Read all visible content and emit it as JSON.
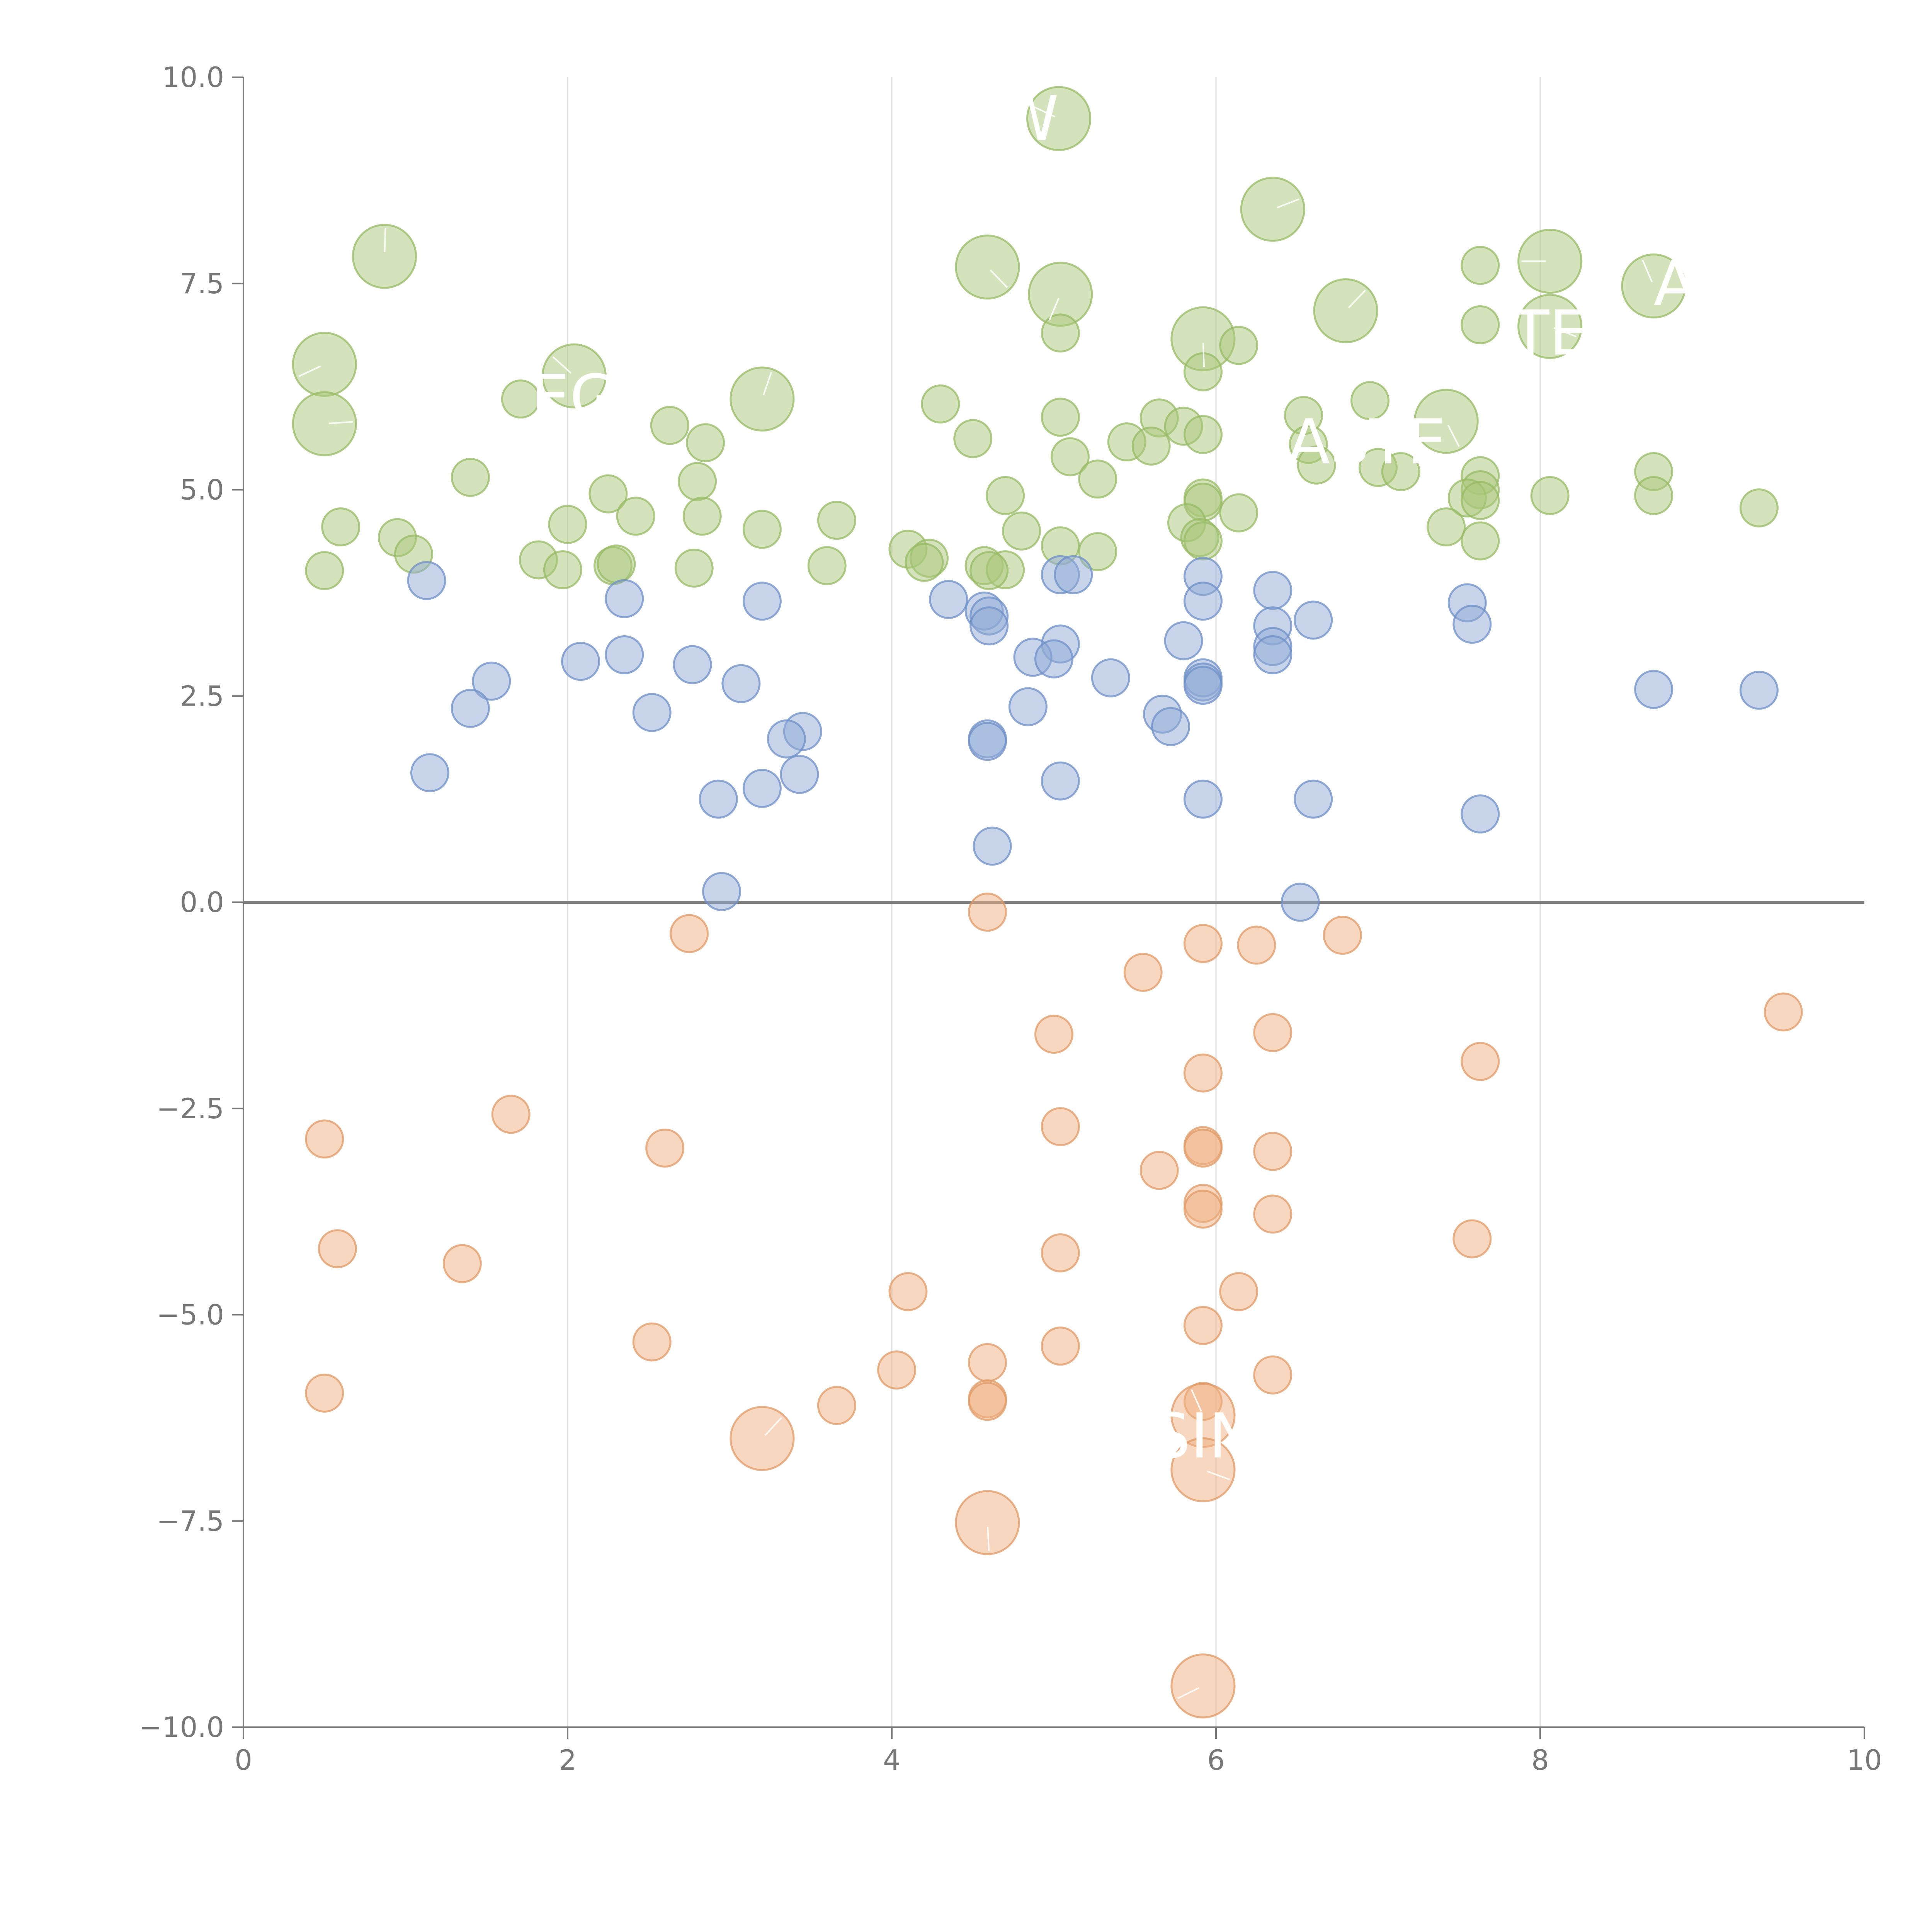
{
  "chart_data": {
    "type": "scatter",
    "title": "",
    "xlabel": "",
    "ylabel": "",
    "xlim": [
      0,
      10
    ],
    "ylim": [
      -10,
      10
    ],
    "x_ticks": [
      0,
      2,
      4,
      6,
      8,
      10
    ],
    "x_tick_labels": [
      "0",
      "2",
      "4",
      "6",
      "8",
      "10"
    ],
    "y_ticks": [
      10,
      7.5,
      5,
      2.5,
      0,
      -2.5,
      -5,
      -7.5,
      -10
    ],
    "y_tick_labels": [
      "10.0",
      "7.5",
      "5.0",
      "2.5",
      "0.0",
      "−2.5",
      "−5.0",
      "−7.5",
      "−10.0"
    ],
    "vertical_grid_at": [
      2,
      4,
      6,
      8
    ],
    "zero_line": true,
    "size_unit": "relative",
    "series": [
      {
        "name": "green",
        "color": "#a9c77a",
        "stroke": "#97b964",
        "points": [
          [
            5.03,
            9.5,
            1.7
          ],
          [
            0.87,
            7.83,
            1.7
          ],
          [
            6.35,
            8.4,
            1.7
          ],
          [
            4.59,
            7.7,
            1.7
          ],
          [
            5.04,
            7.37,
            1.7
          ],
          [
            8.06,
            7.77,
            1.7
          ],
          [
            8.7,
            7.47,
            1.7
          ],
          [
            6.8,
            7.17,
            1.7
          ],
          [
            8.06,
            6.98,
            1.7
          ],
          [
            5.92,
            6.83,
            1.7
          ],
          [
            0.5,
            6.52,
            1.7
          ],
          [
            2.04,
            6.38,
            1.7
          ],
          [
            3.2,
            6.1,
            1.7
          ],
          [
            0.5,
            5.8,
            1.7
          ],
          [
            7.42,
            5.83,
            1.7
          ],
          [
            7.63,
            7.72,
            1
          ],
          [
            7.63,
            7.0,
            1
          ],
          [
            6.14,
            6.75,
            1
          ],
          [
            5.04,
            6.9,
            1
          ],
          [
            5.92,
            6.43,
            1
          ],
          [
            1.71,
            6.1,
            1
          ],
          [
            4.3,
            6.04,
            1
          ],
          [
            6.95,
            6.08,
            1
          ],
          [
            6.54,
            5.9,
            1
          ],
          [
            5.04,
            5.88,
            1
          ],
          [
            5.65,
            5.87,
            1
          ],
          [
            5.8,
            5.77,
            1
          ],
          [
            5.92,
            5.67,
            1
          ],
          [
            2.63,
            5.78,
            1
          ],
          [
            4.5,
            5.62,
            1
          ],
          [
            2.85,
            5.57,
            1
          ],
          [
            5.45,
            5.58,
            1
          ],
          [
            5.6,
            5.53,
            1
          ],
          [
            6.57,
            5.55,
            1
          ],
          [
            5.1,
            5.4,
            1
          ],
          [
            6.62,
            5.3,
            1
          ],
          [
            7.0,
            5.27,
            1
          ],
          [
            7.14,
            5.22,
            1
          ],
          [
            1.4,
            5.15,
            1
          ],
          [
            5.27,
            5.13,
            1
          ],
          [
            2.8,
            5.1,
            1
          ],
          [
            7.63,
            5.17,
            1
          ],
          [
            8.7,
            5.22,
            1
          ],
          [
            7.63,
            5.0,
            1
          ],
          [
            2.25,
            4.95,
            1
          ],
          [
            4.7,
            4.93,
            1
          ],
          [
            5.92,
            4.9,
            1
          ],
          [
            8.06,
            4.93,
            1
          ],
          [
            7.55,
            4.9,
            1
          ],
          [
            8.7,
            4.93,
            1
          ],
          [
            7.63,
            4.87,
            1
          ],
          [
            5.92,
            4.85,
            1
          ],
          [
            9.35,
            4.78,
            1
          ],
          [
            6.14,
            4.72,
            1
          ],
          [
            2.42,
            4.68,
            1
          ],
          [
            2.83,
            4.68,
            1
          ],
          [
            3.66,
            4.63,
            1
          ],
          [
            2.0,
            4.58,
            1
          ],
          [
            0.6,
            4.55,
            1
          ],
          [
            3.2,
            4.52,
            1
          ],
          [
            4.8,
            4.5,
            1
          ],
          [
            5.82,
            4.6,
            1
          ],
          [
            7.42,
            4.55,
            1
          ],
          [
            0.95,
            4.42,
            1
          ],
          [
            5.9,
            4.42,
            1
          ],
          [
            7.63,
            4.38,
            1
          ],
          [
            5.04,
            4.32,
            1
          ],
          [
            5.92,
            4.38,
            1
          ],
          [
            4.1,
            4.28,
            1
          ],
          [
            1.05,
            4.22,
            1
          ],
          [
            5.27,
            4.25,
            1
          ],
          [
            4.23,
            4.17,
            1
          ],
          [
            1.82,
            4.15,
            1
          ],
          [
            4.2,
            4.12,
            1
          ],
          [
            2.28,
            4.08,
            1
          ],
          [
            3.6,
            4.08,
            1
          ],
          [
            4.57,
            4.08,
            1
          ],
          [
            4.7,
            4.03,
            1
          ],
          [
            2.78,
            4.05,
            1
          ],
          [
            1.97,
            4.03,
            1
          ],
          [
            0.5,
            4.02,
            1
          ],
          [
            4.6,
            4.02,
            1
          ],
          [
            2.3,
            4.1,
            1
          ]
        ]
      },
      {
        "name": "blue",
        "color": "#8fa9d6",
        "stroke": "#6e8fc7",
        "points": [
          [
            1.13,
            3.9,
            1
          ],
          [
            5.92,
            3.95,
            1
          ],
          [
            5.04,
            3.97,
            1
          ],
          [
            5.12,
            3.97,
            1
          ],
          [
            6.35,
            3.78,
            1
          ],
          [
            2.35,
            3.68,
            1
          ],
          [
            4.35,
            3.67,
            1
          ],
          [
            3.2,
            3.65,
            1
          ],
          [
            5.92,
            3.65,
            1
          ],
          [
            7.55,
            3.63,
            1
          ],
          [
            4.57,
            3.53,
            1
          ],
          [
            4.6,
            3.47,
            1
          ],
          [
            6.6,
            3.42,
            1
          ],
          [
            6.35,
            3.35,
            1
          ],
          [
            4.6,
            3.35,
            1
          ],
          [
            7.58,
            3.37,
            1
          ],
          [
            5.8,
            3.17,
            1
          ],
          [
            5.04,
            3.13,
            1
          ],
          [
            6.35,
            3.1,
            1
          ],
          [
            6.35,
            3.0,
            1
          ],
          [
            2.35,
            3.0,
            1
          ],
          [
            4.87,
            2.97,
            1
          ],
          [
            5.0,
            2.95,
            1
          ],
          [
            2.08,
            2.92,
            1
          ],
          [
            2.77,
            2.88,
            1
          ],
          [
            5.35,
            2.72,
            1
          ],
          [
            5.92,
            2.72,
            1
          ],
          [
            1.53,
            2.68,
            1
          ],
          [
            5.92,
            2.67,
            1
          ],
          [
            5.92,
            2.63,
            1
          ],
          [
            3.07,
            2.65,
            1
          ],
          [
            8.7,
            2.58,
            1
          ],
          [
            9.35,
            2.57,
            1
          ],
          [
            4.84,
            2.37,
            1
          ],
          [
            1.4,
            2.35,
            1
          ],
          [
            2.52,
            2.3,
            1
          ],
          [
            5.67,
            2.28,
            1
          ],
          [
            5.72,
            2.13,
            1
          ],
          [
            3.45,
            2.07,
            1
          ],
          [
            3.35,
            1.98,
            1
          ],
          [
            4.59,
            1.98,
            1
          ],
          [
            4.59,
            1.95,
            1
          ],
          [
            3.43,
            1.55,
            1
          ],
          [
            1.15,
            1.57,
            1
          ],
          [
            5.04,
            1.47,
            1
          ],
          [
            3.2,
            1.38,
            1
          ],
          [
            2.93,
            1.25,
            1
          ],
          [
            5.92,
            1.25,
            1
          ],
          [
            6.6,
            1.25,
            1
          ],
          [
            7.63,
            1.07,
            1
          ],
          [
            4.62,
            0.68,
            1
          ],
          [
            2.95,
            0.13,
            1
          ],
          [
            6.52,
            0.0,
            1
          ]
        ]
      },
      {
        "name": "orange",
        "color": "#efaf7f",
        "stroke": "#e09a66",
        "points": [
          [
            4.59,
            -0.12,
            1
          ],
          [
            2.75,
            -0.38,
            1
          ],
          [
            6.78,
            -0.4,
            1
          ],
          [
            5.92,
            -0.5,
            1
          ],
          [
            6.25,
            -0.52,
            1
          ],
          [
            5.55,
            -0.85,
            1
          ],
          [
            9.5,
            -1.33,
            1
          ],
          [
            5.0,
            -1.6,
            1
          ],
          [
            6.35,
            -1.58,
            1
          ],
          [
            7.63,
            -1.93,
            1
          ],
          [
            5.92,
            -2.07,
            1
          ],
          [
            1.65,
            -2.57,
            1
          ],
          [
            0.5,
            -2.87,
            1
          ],
          [
            5.04,
            -2.72,
            1
          ],
          [
            5.92,
            -2.95,
            1
          ],
          [
            5.92,
            -2.98,
            1
          ],
          [
            2.6,
            -2.98,
            1
          ],
          [
            6.35,
            -3.02,
            1
          ],
          [
            5.65,
            -3.25,
            1
          ],
          [
            5.92,
            -3.65,
            1
          ],
          [
            5.92,
            -3.72,
            1
          ],
          [
            6.35,
            -3.78,
            1
          ],
          [
            7.58,
            -4.08,
            1
          ],
          [
            0.58,
            -4.2,
            1
          ],
          [
            5.04,
            -4.25,
            1
          ],
          [
            1.35,
            -4.38,
            1
          ],
          [
            4.1,
            -4.72,
            1
          ],
          [
            6.14,
            -4.72,
            1
          ],
          [
            5.92,
            -5.13,
            1
          ],
          [
            2.52,
            -5.33,
            1
          ],
          [
            5.04,
            -5.38,
            1
          ],
          [
            4.59,
            -5.58,
            1
          ],
          [
            4.03,
            -5.67,
            1
          ],
          [
            6.35,
            -5.73,
            1
          ],
          [
            0.5,
            -5.95,
            1
          ],
          [
            4.59,
            -6.02,
            1
          ],
          [
            4.59,
            -6.05,
            1
          ],
          [
            5.92,
            -6.05,
            1
          ],
          [
            3.66,
            -6.1,
            1
          ],
          [
            5.92,
            -6.22,
            1.7
          ],
          [
            3.2,
            -6.5,
            1.7
          ],
          [
            5.92,
            -6.88,
            1.7
          ],
          [
            4.59,
            -7.52,
            1.7
          ],
          [
            5.92,
            -9.5,
            1.7
          ]
        ]
      }
    ],
    "word_labels": [
      {
        "text": "OW",
        "x": 5.03,
        "y": 9.5,
        "anchor": "end"
      },
      {
        "text": "EG",
        "x": 2.04,
        "y": 6.12,
        "anchor": "middle"
      },
      {
        "text": "ASTE",
        "x": 7.42,
        "y": 5.58,
        "anchor": "end"
      },
      {
        "text": "TE",
        "x": 8.06,
        "y": 6.9,
        "anchor": "middle"
      },
      {
        "text": "A",
        "x": 8.7,
        "y": 7.5,
        "anchor": "start"
      },
      {
        "text": "SIN",
        "x": 5.92,
        "y": -6.47,
        "anchor": "middle"
      }
    ]
  }
}
